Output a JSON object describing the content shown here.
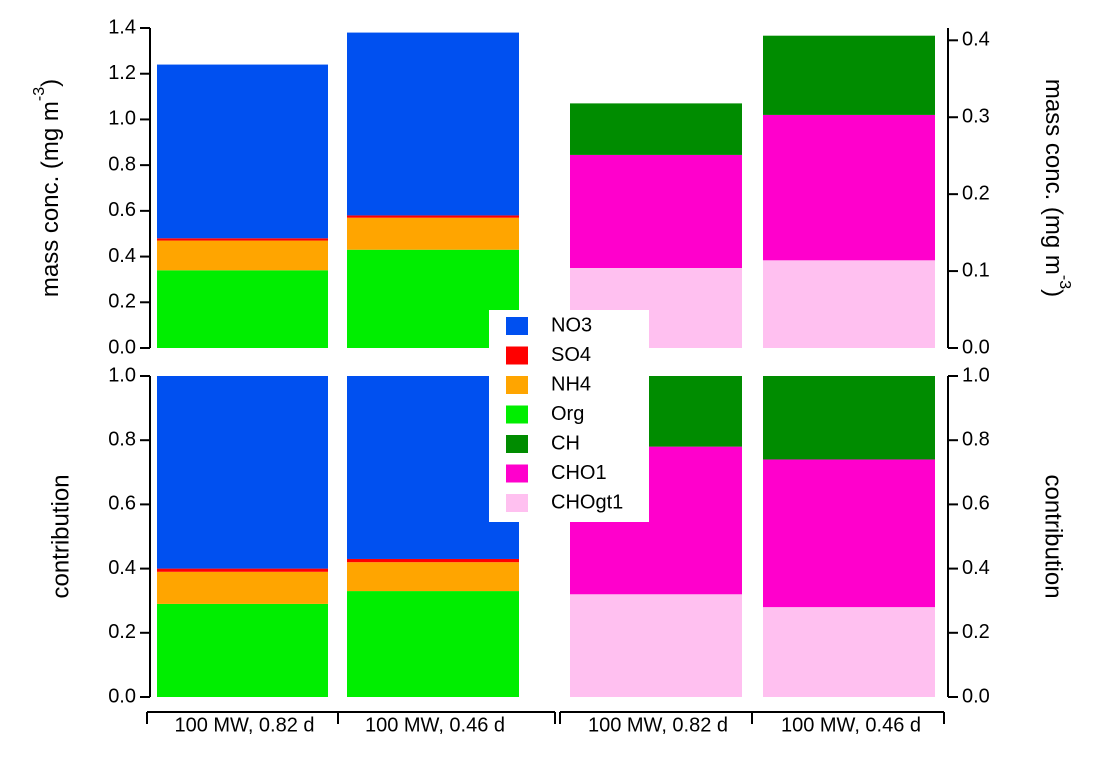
{
  "chart_data": [
    {
      "type": "bar",
      "stacked": true,
      "ylabel": {
        "text": "mass conc. (mg m",
        "sup": "-3",
        "end": ")"
      },
      "ylim": [
        0,
        1.4
      ],
      "yticks": [
        {
          "value": 0,
          "label": "0.0"
        },
        {
          "value": 0.2,
          "label": "0.2"
        },
        {
          "value": 0.4,
          "label": "0.4"
        },
        {
          "value": 0.6,
          "label": "0.6"
        },
        {
          "value": 0.8,
          "label": "0.8"
        },
        {
          "value": 1.0,
          "label": "1.0"
        },
        {
          "value": 1.2,
          "label": "1.2"
        },
        {
          "value": 1.4,
          "label": "1.4"
        }
      ],
      "y2lim": [
        0,
        0.416
      ],
      "y2ticks": [
        {
          "value": 0,
          "label": "0.0"
        },
        {
          "value": 0.1,
          "label": "0.1"
        },
        {
          "value": 0.2,
          "label": "0.2"
        },
        {
          "value": 0.3,
          "label": "0.3"
        },
        {
          "value": 0.4,
          "label": "0.4"
        }
      ],
      "series": [
        {
          "name": "NO3",
          "color": "#0050f0",
          "values": [
            0.76,
            0.8,
            null,
            null
          ]
        },
        {
          "name": "SO4",
          "color": "#ff0000",
          "values": [
            0.01,
            0.01,
            null,
            null
          ]
        },
        {
          "name": "NH4",
          "color": "#ffa500",
          "values": [
            0.13,
            0.14,
            null,
            null
          ]
        },
        {
          "name": "Org",
          "color": "#00ee00",
          "values": [
            0.34,
            0.43,
            null,
            null
          ]
        },
        {
          "name": "CH",
          "color": "#008c00",
          "axis": "y2",
          "values": [
            null,
            null,
            0.067,
            0.103
          ]
        },
        {
          "name": "CHO1",
          "color": "#ff00cc",
          "axis": "y2",
          "values": [
            null,
            null,
            0.147,
            0.189
          ]
        },
        {
          "name": "CHOgt1",
          "color": "#ffc0f0",
          "axis": "y2",
          "values": [
            null,
            null,
            0.104,
            0.114
          ]
        }
      ]
    },
    {
      "type": "bar",
      "stacked": true,
      "ylabel": "contribution",
      "y2label": "contribution",
      "categories": [
        "100 MW, 0.82 d",
        "100 MW, 0.46 d",
        "100 MW, 0.82 d",
        "100 MW, 0.46 d"
      ],
      "ylim": [
        0,
        1.0
      ],
      "yticks": [
        {
          "value": 0,
          "label": "0.0"
        },
        {
          "value": 0.2,
          "label": "0.2"
        },
        {
          "value": 0.4,
          "label": "0.4"
        },
        {
          "value": 0.6,
          "label": "0.6"
        },
        {
          "value": 0.8,
          "label": "0.8"
        },
        {
          "value": 1.0,
          "label": "1.0"
        }
      ],
      "y2lim": [
        0,
        1.0
      ],
      "y2ticks": [
        {
          "value": 0,
          "label": "0.0"
        },
        {
          "value": 0.2,
          "label": "0.2"
        },
        {
          "value": 0.4,
          "label": "0.4"
        },
        {
          "value": 0.6,
          "label": "0.6"
        },
        {
          "value": 0.8,
          "label": "0.8"
        },
        {
          "value": 1.0,
          "label": "1.0"
        }
      ],
      "series": [
        {
          "values": [
            0.6,
            0.57,
            null,
            null
          ]
        },
        {
          "values": [
            0.01,
            0.01,
            null,
            null
          ]
        },
        {
          "values": [
            0.1,
            0.09,
            null,
            null
          ]
        },
        {
          "values": [
            0.29,
            0.33,
            null,
            null
          ]
        },
        {
          "axis": "y2",
          "values": [
            null,
            null,
            0.22,
            0.26
          ]
        },
        {
          "axis": "y2",
          "values": [
            null,
            null,
            0.46,
            0.46
          ]
        },
        {
          "axis": "y2",
          "values": [
            null,
            null,
            0.32,
            0.28
          ]
        }
      ]
    }
  ]
}
